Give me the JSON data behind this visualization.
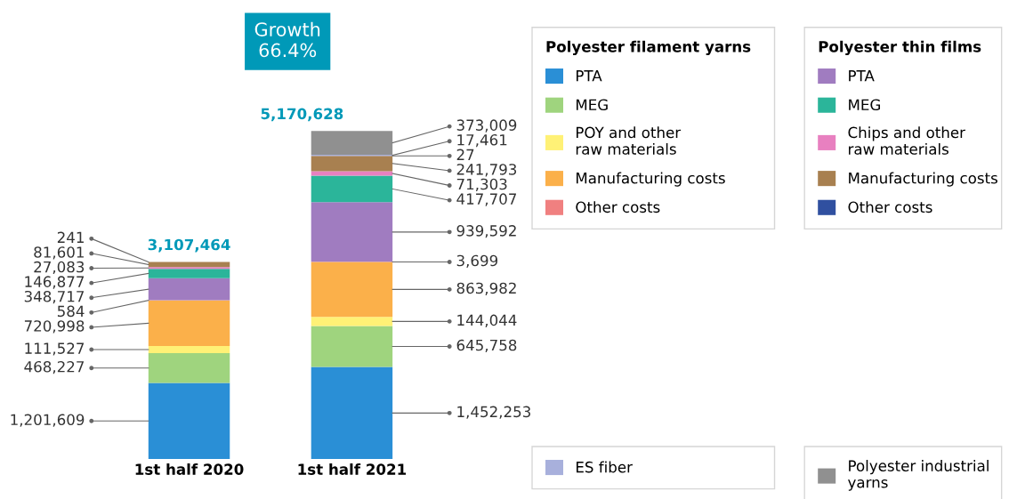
{
  "chart_data": {
    "type": "bar",
    "stacked": true,
    "categories": [
      "1st half 2020",
      "1st half 2021"
    ],
    "totals": [
      "3,107,464",
      "5,170,628"
    ],
    "annotations": [
      "Growth\n66.4%",
      "Polyester filament yarns",
      "Polyester thin films"
    ],
    "legend": "right",
    "series": [
      {
        "name": "PTA",
        "color": "#2a8fd6",
        "values": [
          1201609,
          1452253
        ],
        "value_labels": [
          "1,201,609",
          "1,452,253"
        ]
      },
      {
        "name": "MEG",
        "color": "#9fd47e",
        "values": [
          468227,
          645758
        ],
        "value_labels": [
          "468,227",
          "645,758"
        ]
      },
      {
        "name": "POY and other\nraw materials",
        "color": "#fff176",
        "values": [
          111527,
          144044
        ],
        "value_labels": [
          "111,527",
          "144,044"
        ]
      },
      {
        "name": "Manufacturing costs",
        "color": "#fbb04a",
        "values": [
          720998,
          863982
        ],
        "value_labels": [
          "720,998",
          "863,982"
        ]
      },
      {
        "name": "Other costs",
        "color": "#f08080",
        "values": [
          584,
          3699
        ],
        "value_labels": [
          "584",
          "3,699"
        ]
      },
      {
        "name": "PTA",
        "color": "#a07cc0",
        "values": [
          348717,
          939592
        ],
        "value_labels": [
          "348,717",
          "939,592"
        ]
      },
      {
        "name": "MEG",
        "color": "#2bb59a",
        "values": [
          146877,
          417707
        ],
        "value_labels": [
          "146,877",
          "417,707"
        ]
      },
      {
        "name": "Chips and other\nraw materials",
        "color": "#e880c0",
        "values": [
          27083,
          71303
        ],
        "value_labels": [
          "27,083",
          "71,303"
        ]
      },
      {
        "name": "Manufacturing costs",
        "color": "#a88050",
        "values": [
          81601,
          241793
        ],
        "value_labels": [
          "81,601",
          "241,793"
        ]
      },
      {
        "name": "Other costs",
        "color": "#3050a0",
        "values": [
          241,
          27
        ],
        "value_labels": [
          "241",
          "27"
        ]
      },
      {
        "name": "ES fiber",
        "color": "#a8b0dc",
        "values": [
          null,
          17461
        ],
        "value_labels": [
          null,
          "17,461"
        ]
      },
      {
        "name": "Polyester industrial\nyarns",
        "color": "#909090",
        "values": [
          null,
          373009
        ],
        "value_labels": [
          null,
          "373,009"
        ]
      }
    ]
  }
}
